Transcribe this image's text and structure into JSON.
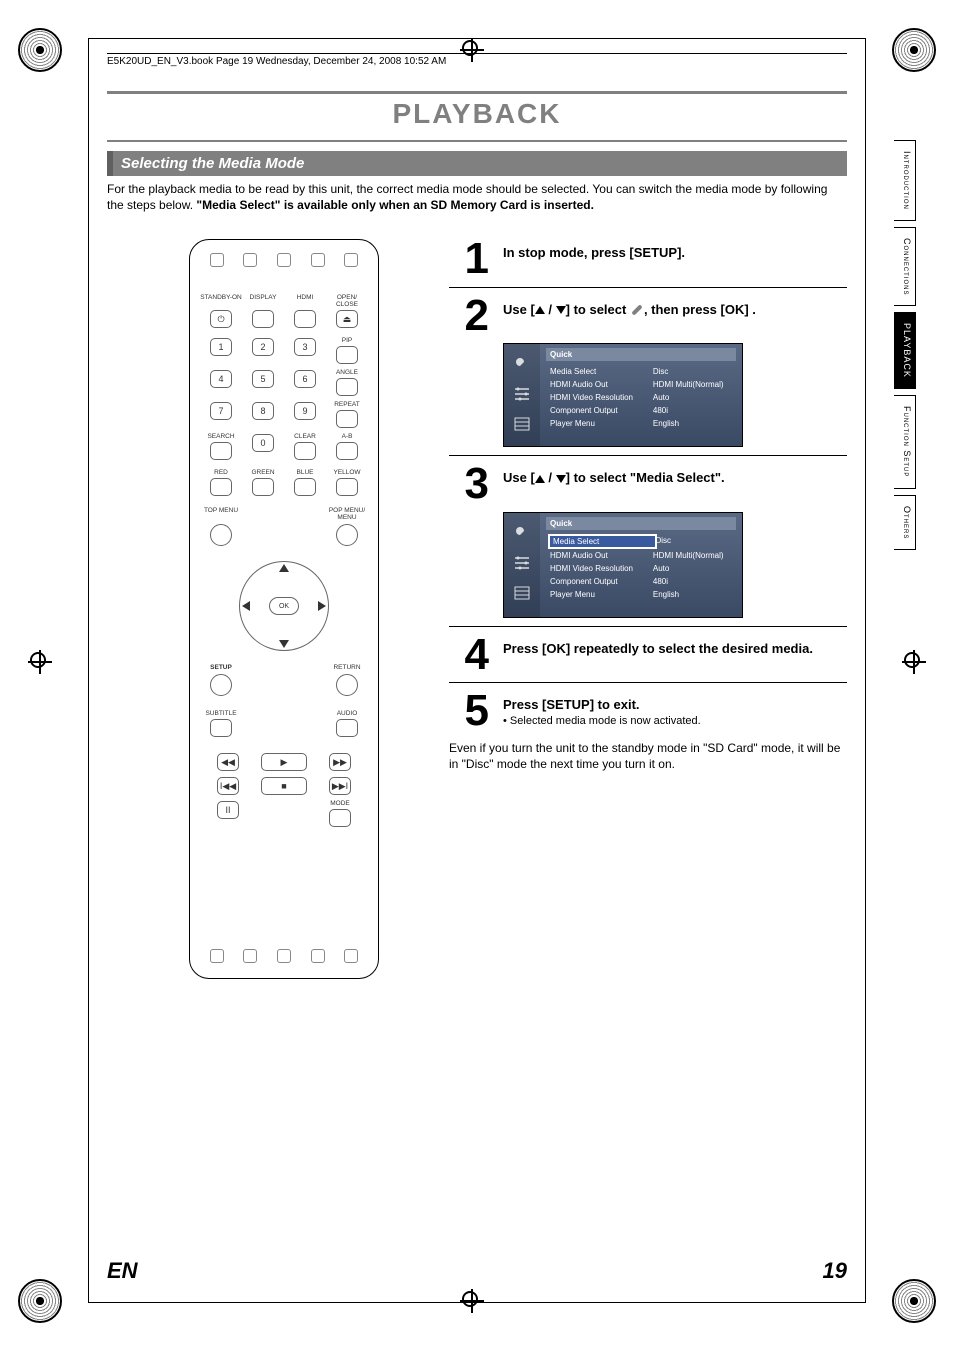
{
  "header_line": "E5K20UD_EN_V3.book  Page 19  Wednesday, December 24, 2008  10:52 AM",
  "title": "PLAYBACK",
  "section_heading": "Selecting the Media Mode",
  "intro": {
    "line1": "For the playback media to be read by this unit, the correct media mode should be selected. You can switch the media mode by following the steps below.",
    "bold": "\"Media Select\" is available only when an SD Memory Card is inserted."
  },
  "remote": {
    "labels": {
      "standby": "STANDBY-ON",
      "display": "DISPLAY",
      "hdmi": "HDMI",
      "openclose": "OPEN/\nCLOSE",
      "pip": "PIP",
      "angle": "ANGLE",
      "repeat": "REPEAT",
      "search": "SEARCH",
      "clear": "CLEAR",
      "ab": "A-B",
      "red": "RED",
      "green": "GREEN",
      "blue": "BLUE",
      "yellow": "YELLOW",
      "topmenu": "TOP MENU",
      "popmenu": "POP MENU/\nMENU",
      "setup": "SETUP",
      "return": "RETURN",
      "subtitle": "SUBTITLE",
      "audio": "AUDIO",
      "mode": "MODE",
      "ok": "OK"
    },
    "digits": [
      "1",
      "2",
      "3",
      "4",
      "5",
      "6",
      "7",
      "8",
      "9",
      "0"
    ],
    "transport": {
      "rew": "◀◀",
      "play": "▶",
      "ff": "▶▶",
      "prev": "I◀◀",
      "stop": "■",
      "next": "▶▶I",
      "pause": "II"
    }
  },
  "steps": {
    "s1": {
      "num": "1",
      "text": "In stop mode, press [SETUP]."
    },
    "s2": {
      "num": "2",
      "text_a": "Use [",
      "text_b": " / ",
      "text_c": "] to select ",
      "text_d": ", then press [OK] ."
    },
    "s3": {
      "num": "3",
      "text_a": "Use [",
      "text_b": " / ",
      "text_c": "] to select \"Media Select\"."
    },
    "s4": {
      "num": "4",
      "text": "Press [OK] repeatedly to select the desired media."
    },
    "s5": {
      "num": "5",
      "text": "Press [SETUP] to exit.",
      "bullet": "Selected media mode is now activated."
    }
  },
  "menu": {
    "header": "Quick",
    "rows": [
      {
        "k": "Media Select",
        "v": "Disc"
      },
      {
        "k": "HDMI Audio Out",
        "v": "HDMI Multi(Normal)"
      },
      {
        "k": "HDMI Video Resolution",
        "v": "Auto"
      },
      {
        "k": "Component Output",
        "v": "480i"
      },
      {
        "k": "Player Menu",
        "v": "English"
      }
    ],
    "selected_index_step3": 0,
    "colors": {
      "bg_top": "#5a6a85",
      "bg_bottom": "#3a4a65",
      "header_bg": "#7a88a0",
      "text": "#ffffff",
      "sel_bg": "#3a5aa0",
      "sel_outline": "#ffffff",
      "border": "#000000"
    }
  },
  "after_note": "Even if you turn the unit to the standby mode in \"SD Card\" mode, it will be in \"Disc\" mode the next time you turn it on.",
  "tabs": {
    "items": [
      "Introduction",
      "Connections",
      "PLAYBACK",
      "Function Setup",
      "Others"
    ],
    "active_index": 2
  },
  "footer": {
    "lang": "EN",
    "page": "19"
  },
  "colors": {
    "title_gray": "#808080",
    "section_bg": "#808080",
    "section_border": "#606060",
    "text": "#000000",
    "tab_active_bg": "#000000",
    "tab_active_fg": "#ffffff"
  }
}
